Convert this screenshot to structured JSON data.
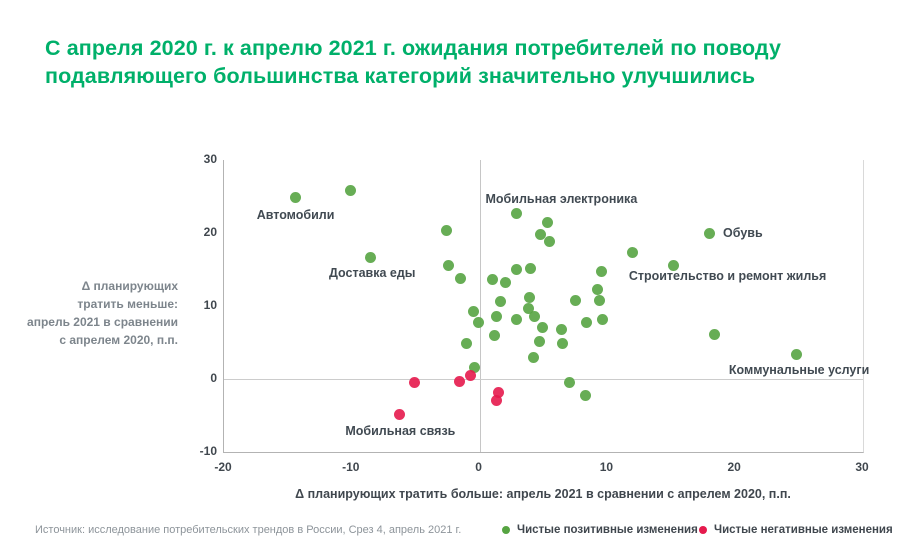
{
  "title": "С апреля 2020 г. к апрелю 2021 г. ожидания потребителей по поводу подавляющего большинства категорий значительно улучшились",
  "source": "Источник: исследование потребительских трендов в России, Срез 4, апрель 2021 г.",
  "colors": {
    "title_green": "#00b06a",
    "positive_dot": "#56a442",
    "negative_dot": "#e51a4d",
    "axis_line": "#b3b3b3",
    "zero_line": "#c6c6c6",
    "tick_text": "#40474e",
    "annotation_text": "#414a52",
    "muted_text": "#7d858c",
    "source_text": "#8d949a"
  },
  "legend": {
    "items": [
      {
        "label": "Чистые позитивные изменения",
        "color": "#56a442",
        "name": "legend-positive"
      },
      {
        "label": "Чистые негативные изменения",
        "color": "#e51a4d",
        "name": "legend-negative"
      }
    ]
  },
  "chart_data": {
    "type": "scatter",
    "xlabel": "Δ планирующих тратить больше: апрель 2021 в сравнении с апрелем 2020, п.п.",
    "ylabel": "Δ планирующих\nтратить меньше:\nапрель 2021 в сравнении\nс апрелем 2020, п.п.",
    "xlim": [
      -20,
      30
    ],
    "ylim": [
      -10,
      30
    ],
    "x_ticks": [
      -20,
      -10,
      0,
      10,
      20,
      30
    ],
    "y_ticks": [
      30,
      20,
      10,
      0,
      -10
    ],
    "grid": "zero-lines-only",
    "legend_position": "bottom",
    "series": [
      {
        "name": "Чистые позитивные изменения",
        "color": "#56a442",
        "points": [
          [
            -14.4,
            24.9
          ],
          [
            -10.1,
            25.8
          ],
          [
            -8.5,
            16.6
          ],
          [
            -2.6,
            20.4
          ],
          [
            -2.4,
            15.5
          ],
          [
            -1.5,
            13.8
          ],
          [
            -1.0,
            4.9
          ],
          [
            -0.5,
            9.3
          ],
          [
            -0.1,
            7.8
          ],
          [
            -0.4,
            1.6
          ],
          [
            1.0,
            13.6
          ],
          [
            2.0,
            13.2
          ],
          [
            2.9,
            15.0
          ],
          [
            4.0,
            15.2
          ],
          [
            1.6,
            10.6
          ],
          [
            1.3,
            8.6
          ],
          [
            1.2,
            5.9
          ],
          [
            2.9,
            22.7
          ],
          [
            5.3,
            21.5
          ],
          [
            4.8,
            19.8
          ],
          [
            5.5,
            18.8
          ],
          [
            3.9,
            11.2
          ],
          [
            3.8,
            9.7
          ],
          [
            2.9,
            8.1
          ],
          [
            4.3,
            8.6
          ],
          [
            4.9,
            7.0
          ],
          [
            4.7,
            5.1
          ],
          [
            4.2,
            2.9
          ],
          [
            6.4,
            6.8
          ],
          [
            6.5,
            4.9
          ],
          [
            7.0,
            -0.5
          ],
          [
            8.3,
            -2.3
          ],
          [
            7.5,
            10.8
          ],
          [
            9.4,
            10.8
          ],
          [
            9.2,
            12.2
          ],
          [
            9.5,
            14.7
          ],
          [
            8.4,
            7.7
          ],
          [
            9.6,
            8.2
          ],
          [
            12.0,
            17.3
          ],
          [
            15.2,
            15.6
          ],
          [
            18.0,
            20.0
          ],
          [
            18.4,
            6.1
          ],
          [
            24.8,
            3.4
          ]
        ]
      },
      {
        "name": "Чистые негативные изменения",
        "color": "#e51a4d",
        "points": [
          [
            -6.3,
            -4.9
          ],
          [
            -5.1,
            -0.5
          ],
          [
            -1.6,
            -0.4
          ],
          [
            -0.7,
            0.5
          ],
          [
            1.5,
            -1.9
          ],
          [
            1.3,
            -3.0
          ]
        ]
      }
    ],
    "annotations": [
      {
        "label": "Автомобили",
        "x": -14.4,
        "y": 22.4
      },
      {
        "label": "Доставка еды",
        "x": -8.4,
        "y": 14.5
      },
      {
        "label": "Мобильная электроника",
        "x": 6.4,
        "y": 24.6
      },
      {
        "label": "Обувь",
        "x": 20.6,
        "y": 20.0
      },
      {
        "label": "Строительство и ремонт жилья",
        "x": 19.4,
        "y": 14.1
      },
      {
        "label": "Коммунальные услуги",
        "x": 25.0,
        "y": 1.3
      },
      {
        "label": "Мобильная связь",
        "x": -6.2,
        "y": -7.1
      }
    ]
  }
}
